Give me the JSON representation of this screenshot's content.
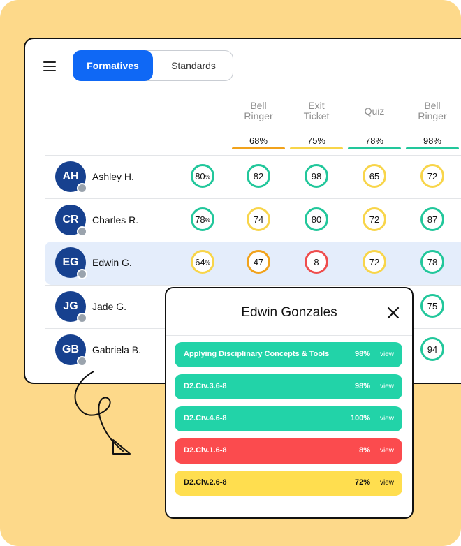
{
  "colors": {
    "background": "#fdd98a",
    "accent": "#0f68f5",
    "green": "#22c79b",
    "yellow": "#f8d54a",
    "orange": "#f1a21b",
    "red": "#ef4d4d",
    "avatar": "#17418f"
  },
  "toolbar": {
    "menu_icon": "hamburger-menu-icon",
    "tabs": [
      {
        "label": "Formatives",
        "active": true
      },
      {
        "label": "Standards",
        "active": false
      }
    ]
  },
  "assessments": [
    {
      "line1": "Bell",
      "line2": "Ringer",
      "average": "68%",
      "bar_color": "#f1a21b"
    },
    {
      "line1": "Exit",
      "line2": "Ticket",
      "average": "75%",
      "bar_color": "#f8d54a"
    },
    {
      "line1": "",
      "line2": "Quiz",
      "average": "78%",
      "bar_color": "#22c79b"
    },
    {
      "line1": "Bell",
      "line2": "Ringer",
      "average": "98%",
      "bar_color": "#22c79b"
    }
  ],
  "students": [
    {
      "initials": "AH",
      "name": "Ashley H.",
      "overall": "80",
      "scores": [
        "82",
        "98",
        "65",
        "72"
      ],
      "selected": false
    },
    {
      "initials": "CR",
      "name": "Charles R.",
      "overall": "78",
      "scores": [
        "74",
        "80",
        "72",
        "87"
      ],
      "selected": false
    },
    {
      "initials": "EG",
      "name": "Edwin G.",
      "overall": "64",
      "scores": [
        "47",
        "8",
        "72",
        "78"
      ],
      "selected": true
    },
    {
      "initials": "JG",
      "name": "Jade G.",
      "overall": "",
      "scores": [
        "",
        "",
        "",
        "75"
      ],
      "selected": false
    },
    {
      "initials": "GB",
      "name": "Gabriela B.",
      "overall": "",
      "scores": [
        "",
        "",
        "",
        "94"
      ],
      "selected": false
    }
  ],
  "popup": {
    "title": "Edwin Gonzales",
    "close_icon": "close-icon",
    "standards": [
      {
        "name": "Applying Disciplinary Concepts & Tools",
        "percent": "98%",
        "action": "view",
        "color": "#22d3a8"
      },
      {
        "name": "D2.Civ.3.6-8",
        "percent": "98%",
        "action": "view",
        "color": "#22d3a8"
      },
      {
        "name": "D2.Civ.4.6-8",
        "percent": "100%",
        "action": "view",
        "color": "#22d3a8"
      },
      {
        "name": "D2.Civ.1.6-8",
        "percent": "8%",
        "action": "view",
        "color": "#fb4b4e"
      },
      {
        "name": "D2.Civ.2.6-8",
        "percent": "72%",
        "action": "view",
        "color": "#ffde4f"
      }
    ]
  },
  "pct_symbol": "%"
}
